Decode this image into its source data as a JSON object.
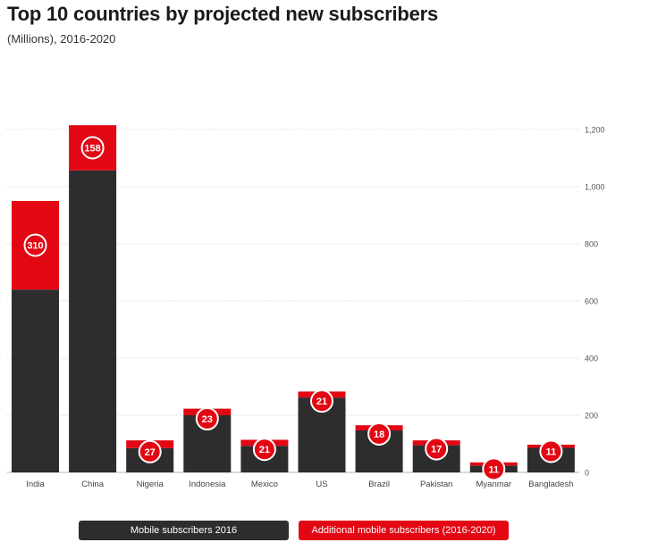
{
  "title": "Top 10 countries by projected new subscribers",
  "subtitle": "(Millions), 2016-2020",
  "colors": {
    "base": "#2d2d2d",
    "additional": "#e30613",
    "grid": "#b5b5b5"
  },
  "legend": {
    "base": "Mobile subscribers 2016",
    "additional": "Additional mobile subscribers (2016-2020)"
  },
  "chart_data": {
    "type": "bar",
    "stacked": true,
    "categories": [
      "India",
      "China",
      "Nigeria",
      "Indonesia",
      "Mexico",
      "US",
      "Brazil",
      "Pakistan",
      "Myanmar",
      "Bangladesh"
    ],
    "series": [
      {
        "name": "Mobile subscribers 2016",
        "values": [
          640,
          1057,
          85,
          200,
          93,
          262,
          147,
          95,
          24,
          86
        ]
      },
      {
        "name": "Additional mobile subscribers (2016-2020)",
        "values": [
          310,
          158,
          27,
          23,
          21,
          21,
          18,
          17,
          11,
          11
        ]
      }
    ],
    "data_labels": [
      "310",
      "158",
      "27",
      "23",
      "21",
      "21",
      "18",
      "17",
      "11",
      "11"
    ],
    "y_ticks": [
      "0",
      "200",
      "400",
      "600",
      "800",
      "1,000",
      "1,200"
    ],
    "y_tick_values": [
      0,
      200,
      400,
      600,
      800,
      1000,
      1200
    ],
    "ylim": [
      0,
      1200
    ],
    "grid": true,
    "y_axis_side": "right",
    "legend_position": "bottom"
  }
}
